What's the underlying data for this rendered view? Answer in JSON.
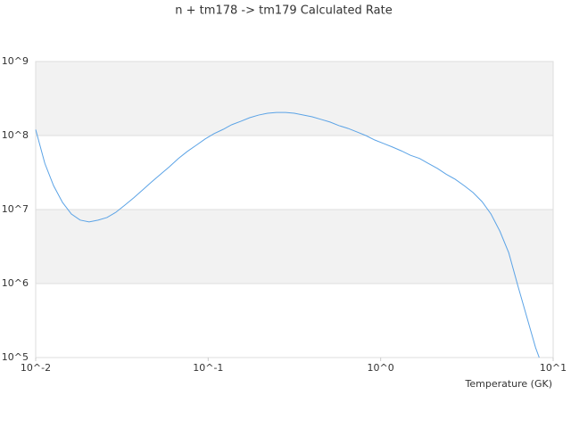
{
  "chart_data": {
    "type": "line",
    "title": "n + tm178 -> tm179 Calculated Rate",
    "x_label": "Temperature (GK)",
    "x_log": true,
    "y_log": true,
    "grid": true,
    "xlim": [
      0.01,
      10
    ],
    "ylim": [
      100000,
      1000000000
    ],
    "xticks": [
      {
        "value": 0.01,
        "label": "10^-2"
      },
      {
        "value": 0.1,
        "label": "10^-1"
      },
      {
        "value": 1,
        "label": "10^0"
      },
      {
        "value": 10,
        "label": "10^1"
      }
    ],
    "yticks": [
      {
        "value": 100000,
        "label": "10^5"
      },
      {
        "value": 1000000,
        "label": "10^6"
      },
      {
        "value": 10000000,
        "label": "10^7"
      },
      {
        "value": 100000000,
        "label": "10^8"
      },
      {
        "value": 1000000000,
        "label": "10^9"
      }
    ],
    "x": [
      0.01,
      0.0113,
      0.0127,
      0.0143,
      0.0161,
      0.0181,
      0.0204,
      0.023,
      0.0259,
      0.0292,
      0.0329,
      0.037,
      0.0417,
      0.047,
      0.053,
      0.0597,
      0.0672,
      0.0757,
      0.0853,
      0.0961,
      0.108,
      0.122,
      0.137,
      0.155,
      0.174,
      0.196,
      0.221,
      0.249,
      0.281,
      0.316,
      0.356,
      0.401,
      0.452,
      0.509,
      0.574,
      0.646,
      0.728,
      0.82,
      0.924,
      1.04,
      1.17,
      1.32,
      1.49,
      1.68,
      1.89,
      2.13,
      2.4,
      2.7,
      3.05,
      3.43,
      3.87,
      4.36,
      4.91,
      5.53,
      6.23,
      7.02,
      7.91,
      8.3
    ],
    "series": [
      {
        "name": "rate",
        "color": "#5ba3e6",
        "values": [
          120000000,
          42000000,
          21000000,
          12500000,
          8700000,
          7200000,
          6800000,
          7200000,
          7800000,
          9200000,
          11500000,
          14400000,
          18400000,
          23600000,
          30000000,
          38000000,
          49000000,
          61000000,
          74000000,
          90000000,
          106000000,
          121000000,
          140000000,
          156000000,
          174000000,
          189000000,
          200000000,
          205000000,
          205000000,
          200000000,
          189000000,
          179000000,
          165000000,
          152000000,
          136000000,
          125000000,
          112000000,
          100000000,
          87000000,
          78000000,
          70000000,
          62000000,
          54000000,
          49000000,
          42000000,
          36000000,
          30000000,
          25700000,
          21000000,
          17000000,
          12800000,
          8700000,
          5100000,
          2600000,
          950000,
          360000,
          136000,
          100000
        ]
      }
    ]
  }
}
